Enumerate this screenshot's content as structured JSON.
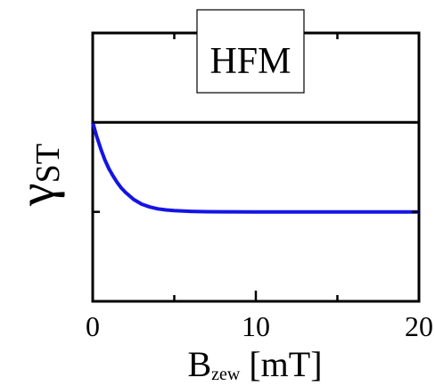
{
  "chart_data": {
    "type": "line",
    "title": "",
    "legend_box_label": "HFM",
    "xlabel": {
      "main": "B",
      "subscript": "zew",
      "unit": "[mT]"
    },
    "ylabel": {
      "main": "γ",
      "subscript": "ST"
    },
    "xlim": [
      0,
      20
    ],
    "x_ticks": [
      0,
      10,
      20
    ],
    "x_tick_labels": [
      "0",
      "10",
      "20"
    ],
    "ylim": [
      0,
      1.5
    ],
    "y_tick_labels_shown": false,
    "grid": false,
    "series": [
      {
        "color": "#000000",
        "x": [
          0,
          20
        ],
        "y": [
          1.0,
          1.0
        ]
      },
      {
        "color": "#1414e6",
        "x": [
          0,
          0.25,
          0.5,
          0.75,
          1,
          1.25,
          1.5,
          1.75,
          2,
          2.5,
          3,
          3.5,
          4,
          4.5,
          5,
          6,
          7,
          8,
          10,
          12,
          14,
          16,
          18,
          20
        ],
        "y": [
          1.0,
          0.92,
          0.85,
          0.79,
          0.74,
          0.7,
          0.665,
          0.634,
          0.61,
          0.57,
          0.543,
          0.527,
          0.517,
          0.511,
          0.507,
          0.503,
          0.501,
          0.5005,
          0.5,
          0.5,
          0.5,
          0.5,
          0.5,
          0.5
        ]
      }
    ]
  }
}
